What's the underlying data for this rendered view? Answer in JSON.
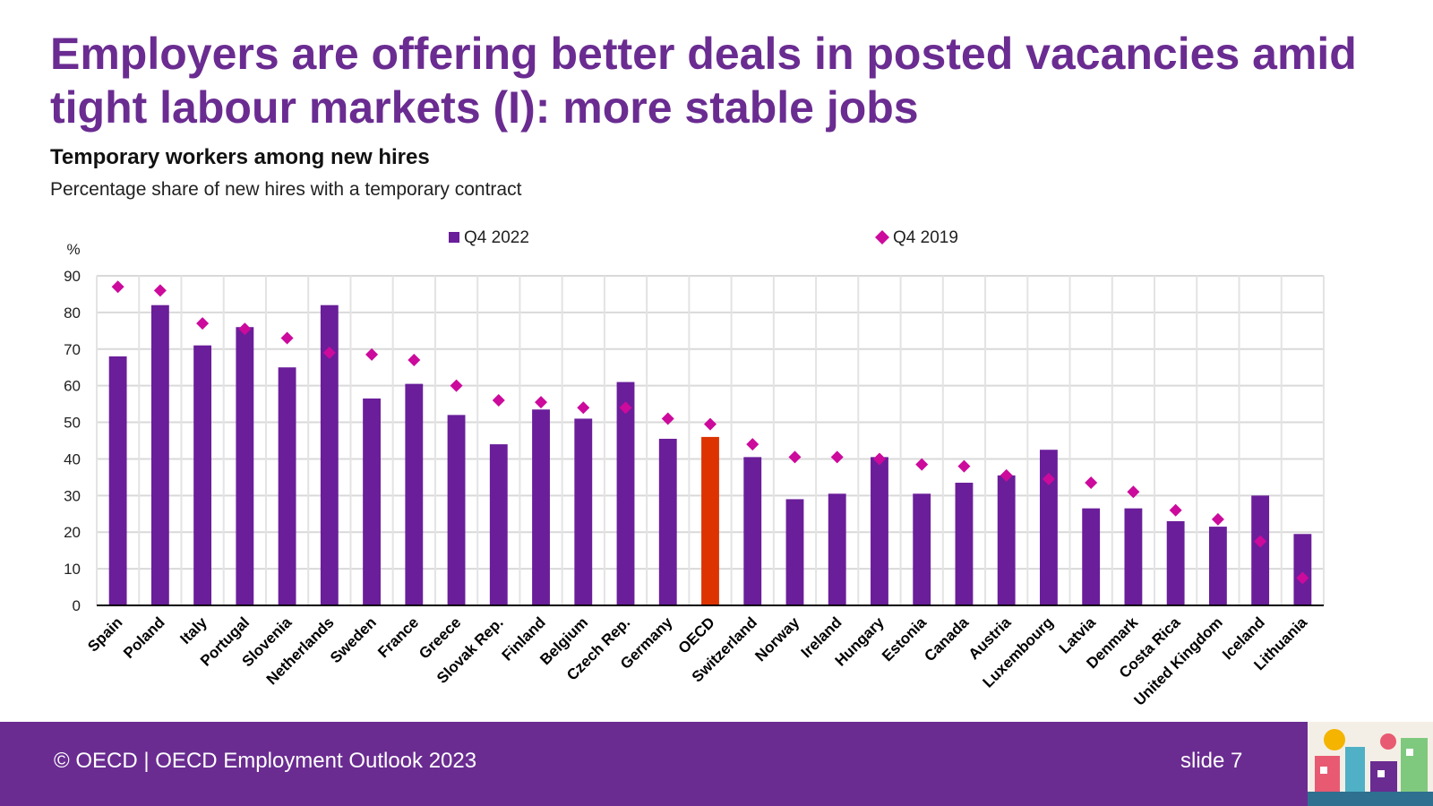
{
  "slide": {
    "title": "Employers are offering better deals in posted vacancies amid tight labour markets (I): more stable jobs",
    "footer_left": "© OECD | OECD Employment Outlook 2023",
    "footer_right": "slide 7"
  },
  "colors": {
    "brand": "#6a2c91",
    "bar": "#6a1e9a",
    "oecd_bar": "#dd3300",
    "marker": "#cc0a9c"
  },
  "chart_data": {
    "type": "bar",
    "title": "Temporary workers among new hires",
    "subtitle": "Percentage share of new hires with a temporary contract",
    "ylabel": "%",
    "ylim": [
      0,
      90
    ],
    "yticks": [
      0,
      10,
      20,
      30,
      40,
      50,
      60,
      70,
      80,
      90
    ],
    "grid": true,
    "legend": "top",
    "highlight_category": "OECD",
    "categories": [
      "Spain",
      "Poland",
      "Italy",
      "Portugal",
      "Slovenia",
      "Netherlands",
      "Sweden",
      "France",
      "Greece",
      "Slovak Rep.",
      "Finland",
      "Belgium",
      "Czech Rep.",
      "Germany",
      "OECD",
      "Switzerland",
      "Norway",
      "Ireland",
      "Hungary",
      "Estonia",
      "Canada",
      "Austria",
      "Luxembourg",
      "Latvia",
      "Denmark",
      "Costa Rica",
      "United Kingdom",
      "Iceland",
      "Lithuania"
    ],
    "series": [
      {
        "name": "Q4 2022",
        "kind": "bar",
        "values": [
          68,
          82,
          71,
          76,
          65,
          82,
          56.5,
          60.5,
          52,
          44,
          53.5,
          51,
          61,
          45.5,
          46,
          40.5,
          29,
          30.5,
          40.5,
          30.5,
          33.5,
          35.5,
          42.5,
          26.5,
          26.5,
          23,
          21.5,
          30,
          19.5
        ]
      },
      {
        "name": "Q4 2019",
        "kind": "marker",
        "values": [
          87,
          86,
          77,
          75.5,
          73,
          69,
          68.5,
          67,
          60,
          56,
          55.5,
          54,
          54,
          51,
          49.5,
          44,
          40.5,
          40.5,
          40,
          38.5,
          38,
          35.5,
          34.5,
          33.5,
          31,
          26,
          23.5,
          17.5,
          7.5
        ]
      }
    ]
  }
}
